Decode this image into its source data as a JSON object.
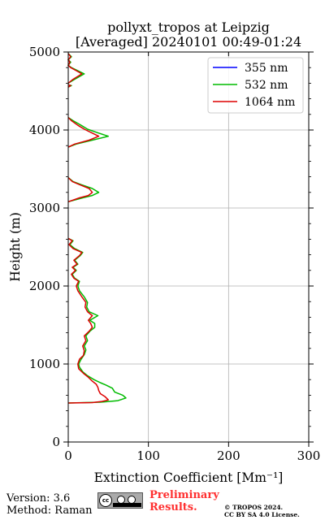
{
  "chart_data": {
    "type": "line",
    "title": [
      "pollyxt_tropos at Leipzig",
      "[Averaged] 20240101 00:49-01:24"
    ],
    "xlabel": "Extinction Coefficient [Mm⁻¹]",
    "ylabel": "Height (m)",
    "xlim": [
      0,
      300
    ],
    "ylim": [
      0,
      5000
    ],
    "xticks": [
      0,
      100,
      200,
      300
    ],
    "yticks": [
      0,
      1000,
      2000,
      3000,
      4000,
      5000
    ],
    "grid": true,
    "legend_position": "top-right",
    "series": [
      {
        "name": "355 nm",
        "color": "#0000ff",
        "points": []
      },
      {
        "name": "532 nm",
        "color": "#00bb00",
        "points": [
          [
            0,
            500
          ],
          [
            40,
            510
          ],
          [
            62,
            530
          ],
          [
            72,
            565
          ],
          [
            68,
            600
          ],
          [
            58,
            640
          ],
          [
            55,
            690
          ],
          [
            47,
            730
          ],
          [
            40,
            760
          ],
          [
            32,
            800
          ],
          [
            24,
            850
          ],
          [
            18,
            900
          ],
          [
            14,
            960
          ],
          [
            13,
            1000
          ],
          [
            16,
            1060
          ],
          [
            20,
            1120
          ],
          [
            22,
            1180
          ],
          [
            20,
            1230
          ],
          [
            24,
            1300
          ],
          [
            22,
            1360
          ],
          [
            27,
            1420
          ],
          [
            33,
            1470
          ],
          [
            33,
            1520
          ],
          [
            27,
            1560
          ],
          [
            37,
            1620
          ],
          [
            26,
            1670
          ],
          [
            23,
            1730
          ],
          [
            24,
            1790
          ],
          [
            20,
            1860
          ],
          [
            14,
            1940
          ],
          [
            12,
            2000
          ],
          [
            14,
            2060
          ],
          [
            8,
            2100
          ],
          [
            5,
            2150
          ],
          [
            10,
            2200
          ],
          [
            6,
            2240
          ],
          [
            12,
            2280
          ],
          [
            8,
            2330
          ],
          [
            15,
            2390
          ],
          [
            18,
            2430
          ],
          [
            8,
            2480
          ],
          [
            2,
            2530
          ],
          [
            6,
            2580
          ],
          [
            0,
            2610
          ],
          [
            null,
            null
          ],
          [
            0,
            3080
          ],
          [
            18,
            3130
          ],
          [
            30,
            3160
          ],
          [
            38,
            3200
          ],
          [
            30,
            3250
          ],
          [
            16,
            3300
          ],
          [
            6,
            3340
          ],
          [
            0,
            3390
          ],
          [
            null,
            null
          ],
          [
            0,
            3780
          ],
          [
            10,
            3820
          ],
          [
            30,
            3870
          ],
          [
            50,
            3920
          ],
          [
            38,
            3960
          ],
          [
            24,
            4010
          ],
          [
            16,
            4060
          ],
          [
            6,
            4120
          ],
          [
            0,
            4160
          ],
          [
            null,
            null
          ],
          [
            0,
            4550
          ],
          [
            4,
            4570
          ],
          [
            0,
            4580
          ],
          [
            null,
            null
          ],
          [
            0,
            4600
          ],
          [
            8,
            4650
          ],
          [
            20,
            4720
          ],
          [
            12,
            4760
          ],
          [
            4,
            4800
          ],
          [
            0,
            4830
          ],
          [
            3,
            4870
          ],
          [
            0,
            4900
          ],
          [
            4,
            4940
          ],
          [
            0,
            4980
          ]
        ]
      },
      {
        "name": "1064 nm",
        "color": "#dd0000",
        "points": [
          [
            0,
            500
          ],
          [
            30,
            505
          ],
          [
            42,
            520
          ],
          [
            50,
            540
          ],
          [
            46,
            580
          ],
          [
            40,
            620
          ],
          [
            38,
            660
          ],
          [
            37,
            700
          ],
          [
            35,
            740
          ],
          [
            30,
            780
          ],
          [
            25,
            830
          ],
          [
            19,
            880
          ],
          [
            13,
            940
          ],
          [
            12,
            1000
          ],
          [
            14,
            1060
          ],
          [
            19,
            1110
          ],
          [
            20,
            1170
          ],
          [
            18,
            1230
          ],
          [
            22,
            1300
          ],
          [
            20,
            1360
          ],
          [
            26,
            1420
          ],
          [
            30,
            1470
          ],
          [
            28,
            1520
          ],
          [
            25,
            1560
          ],
          [
            30,
            1620
          ],
          [
            24,
            1670
          ],
          [
            21,
            1730
          ],
          [
            22,
            1790
          ],
          [
            17,
            1860
          ],
          [
            12,
            1940
          ],
          [
            10,
            2000
          ],
          [
            13,
            2060
          ],
          [
            7,
            2100
          ],
          [
            4,
            2150
          ],
          [
            9,
            2200
          ],
          [
            5,
            2240
          ],
          [
            11,
            2280
          ],
          [
            7,
            2330
          ],
          [
            14,
            2390
          ],
          [
            17,
            2430
          ],
          [
            6,
            2480
          ],
          [
            1,
            2530
          ],
          [
            5,
            2580
          ],
          [
            0,
            2610
          ],
          [
            null,
            null
          ],
          [
            0,
            3080
          ],
          [
            14,
            3130
          ],
          [
            25,
            3160
          ],
          [
            30,
            3200
          ],
          [
            26,
            3250
          ],
          [
            14,
            3300
          ],
          [
            5,
            3340
          ],
          [
            0,
            3390
          ],
          [
            null,
            null
          ],
          [
            0,
            3780
          ],
          [
            8,
            3820
          ],
          [
            26,
            3870
          ],
          [
            38,
            3920
          ],
          [
            30,
            3960
          ],
          [
            20,
            4010
          ],
          [
            12,
            4060
          ],
          [
            4,
            4120
          ],
          [
            0,
            4160
          ],
          [
            null,
            null
          ],
          [
            0,
            4550
          ],
          [
            3,
            4570
          ],
          [
            0,
            4580
          ],
          [
            null,
            null
          ],
          [
            0,
            4600
          ],
          [
            6,
            4650
          ],
          [
            17,
            4720
          ],
          [
            10,
            4760
          ],
          [
            3,
            4800
          ],
          [
            0,
            4830
          ],
          [
            2,
            4870
          ],
          [
            0,
            4900
          ],
          [
            3,
            4940
          ],
          [
            0,
            4980
          ]
        ]
      }
    ]
  },
  "footer": {
    "version": "Version: 3.6",
    "method": "Method: Raman",
    "preliminary_line1": "Preliminary",
    "preliminary_line2": "Results.",
    "copyright_line1": "© TROPOS 2024.",
    "copyright_line2": "CC BY SA 4.0 License.",
    "license_badge": "cc-by-sa-badge"
  }
}
